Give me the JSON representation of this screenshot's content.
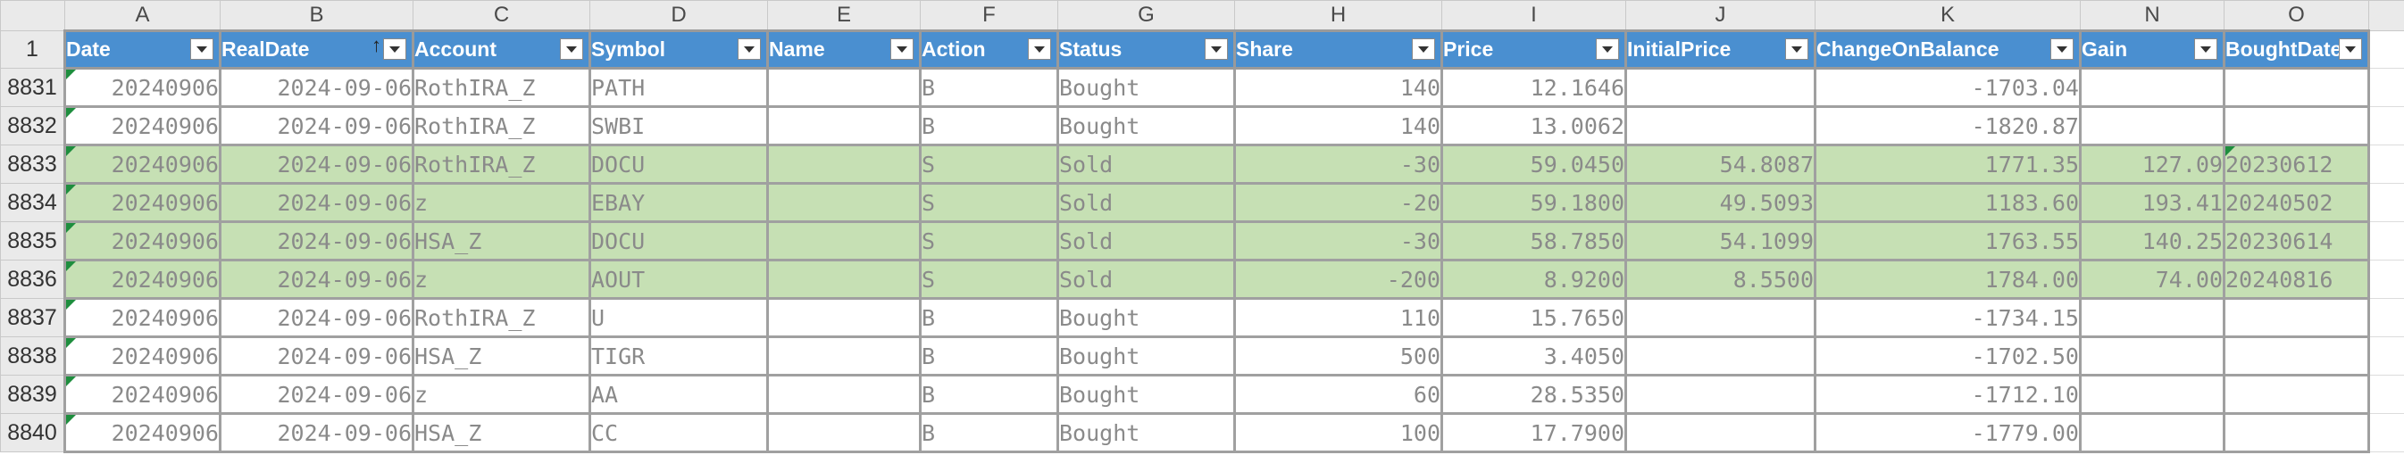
{
  "corner_label": "",
  "column_letters": [
    "A",
    "B",
    "C",
    "D",
    "E",
    "F",
    "G",
    "H",
    "I",
    "J",
    "K",
    "N",
    "O"
  ],
  "headers": [
    "Date",
    "RealDate",
    "Account",
    "Symbol",
    "Name",
    "Action",
    "Status",
    "Share",
    "Price",
    "InitialPrice",
    "ChangeOnBalance",
    "Gain",
    "BoughtDate"
  ],
  "header_row_number": "1",
  "rows": [
    {
      "row": "8831",
      "sold": false,
      "date": "20240906",
      "real_date": "2024-09-06",
      "account": "RothIRA_Z",
      "symbol": "PATH",
      "name": "",
      "action": "B",
      "status": "Bought",
      "share": "140",
      "price": "12.1646",
      "initial_price": "",
      "change_on_balance": "-1703.04",
      "gain": "",
      "bought_date": ""
    },
    {
      "row": "8832",
      "sold": false,
      "date": "20240906",
      "real_date": "2024-09-06",
      "account": "RothIRA_Z",
      "symbol": "SWBI",
      "name": "",
      "action": "B",
      "status": "Bought",
      "share": "140",
      "price": "13.0062",
      "initial_price": "",
      "change_on_balance": "-1820.87",
      "gain": "",
      "bought_date": ""
    },
    {
      "row": "8833",
      "sold": true,
      "date": "20240906",
      "real_date": "2024-09-06",
      "account": "RothIRA_Z",
      "symbol": "DOCU",
      "name": "",
      "action": "S",
      "status": "Sold",
      "share": "-30",
      "price": "59.0450",
      "initial_price": "54.8087",
      "change_on_balance": "1771.35",
      "gain": "127.09",
      "bought_date": "20230612"
    },
    {
      "row": "8834",
      "sold": true,
      "date": "20240906",
      "real_date": "2024-09-06",
      "account": "z",
      "symbol": "EBAY",
      "name": "",
      "action": "S",
      "status": "Sold",
      "share": "-20",
      "price": "59.1800",
      "initial_price": "49.5093",
      "change_on_balance": "1183.60",
      "gain": "193.41",
      "bought_date": "20240502"
    },
    {
      "row": "8835",
      "sold": true,
      "date": "20240906",
      "real_date": "2024-09-06",
      "account": "HSA_Z",
      "symbol": "DOCU",
      "name": "",
      "action": "S",
      "status": "Sold",
      "share": "-30",
      "price": "58.7850",
      "initial_price": "54.1099",
      "change_on_balance": "1763.55",
      "gain": "140.25",
      "bought_date": "20230614"
    },
    {
      "row": "8836",
      "sold": true,
      "date": "20240906",
      "real_date": "2024-09-06",
      "account": "z",
      "symbol": "AOUT",
      "name": "",
      "action": "S",
      "status": "Sold",
      "share": "-200",
      "price": "8.9200",
      "initial_price": "8.5500",
      "change_on_balance": "1784.00",
      "gain": "74.00",
      "bought_date": "20240816"
    },
    {
      "row": "8837",
      "sold": false,
      "date": "20240906",
      "real_date": "2024-09-06",
      "account": "RothIRA_Z",
      "symbol": "U",
      "name": "",
      "action": "B",
      "status": "Bought",
      "share": "110",
      "price": "15.7650",
      "initial_price": "",
      "change_on_balance": "-1734.15",
      "gain": "",
      "bought_date": ""
    },
    {
      "row": "8838",
      "sold": false,
      "date": "20240906",
      "real_date": "2024-09-06",
      "account": "HSA_Z",
      "symbol": "TIGR",
      "name": "",
      "action": "B",
      "status": "Bought",
      "share": "500",
      "price": "3.4050",
      "initial_price": "",
      "change_on_balance": "-1702.50",
      "gain": "",
      "bought_date": ""
    },
    {
      "row": "8839",
      "sold": false,
      "date": "20240906",
      "real_date": "2024-09-06",
      "account": "z",
      "symbol": "AA",
      "name": "",
      "action": "B",
      "status": "Bought",
      "share": "60",
      "price": "28.5350",
      "initial_price": "",
      "change_on_balance": "-1712.10",
      "gain": "",
      "bought_date": ""
    },
    {
      "row": "8840",
      "sold": false,
      "date": "20240906",
      "real_date": "2024-09-06",
      "account": "HSA_Z",
      "symbol": "CC",
      "name": "",
      "action": "B",
      "status": "Bought",
      "share": "100",
      "price": "17.7900",
      "initial_price": "",
      "change_on_balance": "-1779.00",
      "gain": "",
      "bought_date": ""
    }
  ],
  "colors": {
    "header_fill": "#4a8fd0",
    "sold_fill": "#c6e0b4",
    "grid": "#a0a0a0",
    "indicator": "#1e8e3e"
  },
  "icons": {
    "filter": "filter-dropdown-icon",
    "sort": "sort-ascending-icon",
    "error_indicator": "error-indicator-icon"
  }
}
